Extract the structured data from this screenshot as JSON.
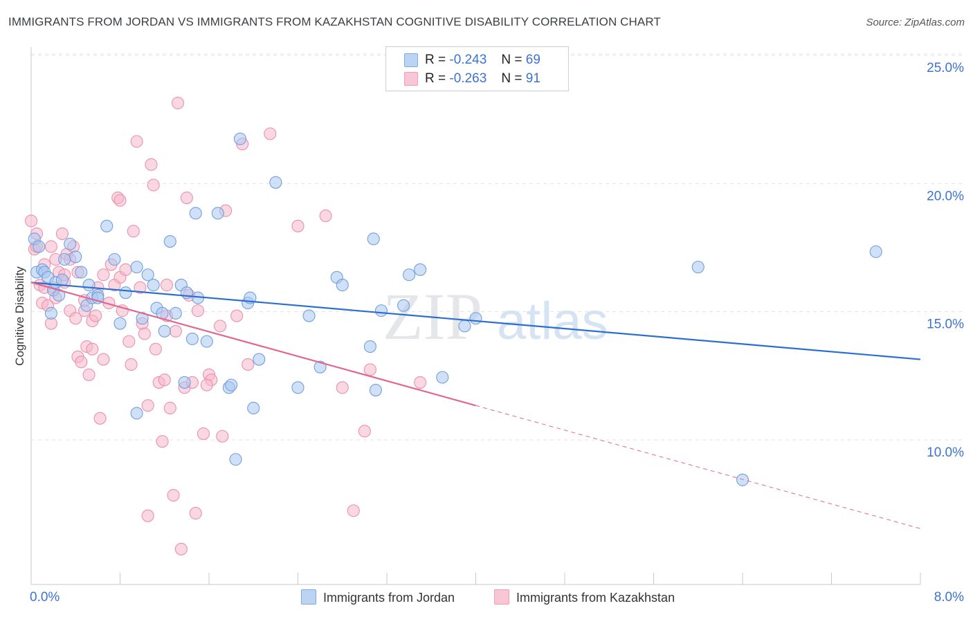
{
  "header": {
    "title": "IMMIGRANTS FROM JORDAN VS IMMIGRANTS FROM KAZAKHSTAN COGNITIVE DISABILITY CORRELATION CHART",
    "source": "Source: ZipAtlas.com"
  },
  "legend": {
    "row1": {
      "r_label": "R =",
      "r_value": "-0.243",
      "n_label": "N =",
      "n_value": "69"
    },
    "row2": {
      "r_label": "R =",
      "r_value": "-0.263",
      "n_label": "N =",
      "n_value": "91"
    }
  },
  "bottom_legend": {
    "series1": "Immigrants from Jordan",
    "series2": "Immigrants from Kazakhstan"
  },
  "colors": {
    "jordan_fill": "#a9c8f0",
    "jordan_stroke": "#6f9fe0",
    "jordan_line": "#2a6fd0",
    "kaz_fill": "#f6b8cb",
    "kaz_stroke": "#ec8fae",
    "kaz_line": "#e2678f",
    "axis_label": "#3a72d6"
  },
  "watermark": {
    "zip": "ZIP",
    "atlas": "atlas"
  },
  "chart_data": {
    "type": "scatter",
    "title": "IMMIGRANTS FROM JORDAN VS IMMIGRANTS FROM KAZAKHSTAN COGNITIVE DISABILITY CORRELATION CHART",
    "ylabel": "Cognitive Disability",
    "xlabel": "",
    "xlim": [
      0,
      8
    ],
    "ylim": [
      5,
      26
    ],
    "x_tick_labels": [
      "0.0%",
      "8.0%"
    ],
    "y_ticks": [
      10,
      15,
      20,
      25
    ],
    "y_tick_labels": [
      "10.0%",
      "15.0%",
      "20.0%",
      "25.0%"
    ],
    "grid": true,
    "legend_position": "top-center",
    "series": [
      {
        "name": "Immigrants from Jordan",
        "R": -0.243,
        "N": 69,
        "trend": {
          "x": [
            0,
            8
          ],
          "y": [
            16.6,
            13.6
          ],
          "dashed_from": null
        },
        "points": [
          [
            0.03,
            18.3
          ],
          [
            0.05,
            17.0
          ],
          [
            0.07,
            18.0
          ],
          [
            0.1,
            17.1
          ],
          [
            0.12,
            17.0
          ],
          [
            0.15,
            16.8
          ],
          [
            0.18,
            15.4
          ],
          [
            0.2,
            16.3
          ],
          [
            0.22,
            16.6
          ],
          [
            0.25,
            16.1
          ],
          [
            0.28,
            16.7
          ],
          [
            0.3,
            17.5
          ],
          [
            0.35,
            18.1
          ],
          [
            0.4,
            17.6
          ],
          [
            0.45,
            17.0
          ],
          [
            0.5,
            15.7
          ],
          [
            0.52,
            16.5
          ],
          [
            0.55,
            16.0
          ],
          [
            0.6,
            16.1
          ],
          [
            0.68,
            18.8
          ],
          [
            0.75,
            17.5
          ],
          [
            0.8,
            15.0
          ],
          [
            0.85,
            16.2
          ],
          [
            0.95,
            17.2
          ],
          [
            1.0,
            15.2
          ],
          [
            1.05,
            16.9
          ],
          [
            1.1,
            16.5
          ],
          [
            1.13,
            15.6
          ],
          [
            1.18,
            15.4
          ],
          [
            1.2,
            14.7
          ],
          [
            1.25,
            18.2
          ],
          [
            1.3,
            15.4
          ],
          [
            1.35,
            16.5
          ],
          [
            1.38,
            12.7
          ],
          [
            1.4,
            16.2
          ],
          [
            1.45,
            14.4
          ],
          [
            1.48,
            19.3
          ],
          [
            1.5,
            16.0
          ],
          [
            1.58,
            14.3
          ],
          [
            1.68,
            19.3
          ],
          [
            1.78,
            12.5
          ],
          [
            1.8,
            12.6
          ],
          [
            1.84,
            9.7
          ],
          [
            1.88,
            22.2
          ],
          [
            1.95,
            15.8
          ],
          [
            1.97,
            16.0
          ],
          [
            2.0,
            11.7
          ],
          [
            2.05,
            13.6
          ],
          [
            2.2,
            20.5
          ],
          [
            2.4,
            12.5
          ],
          [
            2.5,
            15.3
          ],
          [
            2.6,
            13.3
          ],
          [
            2.75,
            16.8
          ],
          [
            2.8,
            16.5
          ],
          [
            3.05,
            14.1
          ],
          [
            3.08,
            18.3
          ],
          [
            3.1,
            12.4
          ],
          [
            3.15,
            15.5
          ],
          [
            3.35,
            15.7
          ],
          [
            3.4,
            16.9
          ],
          [
            3.5,
            17.1
          ],
          [
            3.7,
            12.9
          ],
          [
            3.9,
            14.9
          ],
          [
            4.0,
            15.2
          ],
          [
            6.0,
            17.2
          ],
          [
            6.4,
            8.9
          ],
          [
            7.6,
            17.8
          ],
          [
            0.95,
            11.5
          ],
          [
            0.6,
            16.0
          ]
        ]
      },
      {
        "name": "Immigrants from Kazakhstan",
        "R": -0.263,
        "N": 91,
        "trend": {
          "x": [
            0,
            8
          ],
          "y": [
            16.6,
            7.0
          ],
          "dashed_from": 4.0
        },
        "points": [
          [
            0.0,
            19.0
          ],
          [
            0.03,
            17.9
          ],
          [
            0.05,
            18.5
          ],
          [
            0.08,
            16.5
          ],
          [
            0.1,
            15.8
          ],
          [
            0.12,
            16.4
          ],
          [
            0.15,
            15.7
          ],
          [
            0.18,
            15.0
          ],
          [
            0.2,
            16.4
          ],
          [
            0.22,
            16.0
          ],
          [
            0.25,
            17.0
          ],
          [
            0.28,
            18.5
          ],
          [
            0.3,
            16.6
          ],
          [
            0.32,
            17.7
          ],
          [
            0.35,
            15.5
          ],
          [
            0.38,
            18.0
          ],
          [
            0.4,
            15.2
          ],
          [
            0.42,
            13.7
          ],
          [
            0.45,
            13.5
          ],
          [
            0.48,
            15.5
          ],
          [
            0.5,
            14.1
          ],
          [
            0.52,
            13.0
          ],
          [
            0.55,
            15.1
          ],
          [
            0.58,
            15.3
          ],
          [
            0.6,
            16.4
          ],
          [
            0.62,
            11.3
          ],
          [
            0.65,
            16.9
          ],
          [
            0.7,
            15.8
          ],
          [
            0.72,
            17.3
          ],
          [
            0.75,
            16.5
          ],
          [
            0.78,
            19.9
          ],
          [
            0.8,
            16.8
          ],
          [
            0.82,
            15.5
          ],
          [
            0.85,
            17.1
          ],
          [
            0.88,
            14.3
          ],
          [
            0.9,
            13.4
          ],
          [
            0.92,
            18.6
          ],
          [
            0.95,
            22.1
          ],
          [
            0.98,
            16.4
          ],
          [
            1.0,
            15.0
          ],
          [
            1.02,
            14.6
          ],
          [
            1.05,
            11.8
          ],
          [
            1.08,
            21.2
          ],
          [
            1.1,
            20.4
          ],
          [
            1.12,
            14.0
          ],
          [
            1.15,
            12.7
          ],
          [
            1.18,
            10.4
          ],
          [
            1.2,
            12.8
          ],
          [
            1.22,
            16.5
          ],
          [
            1.25,
            11.7
          ],
          [
            1.28,
            8.3
          ],
          [
            1.3,
            14.7
          ],
          [
            1.32,
            23.6
          ],
          [
            1.35,
            6.2
          ],
          [
            1.38,
            12.5
          ],
          [
            1.4,
            19.9
          ],
          [
            1.42,
            16.1
          ],
          [
            1.45,
            12.7
          ],
          [
            1.48,
            7.6
          ],
          [
            1.5,
            15.5
          ],
          [
            1.55,
            10.7
          ],
          [
            1.6,
            13.0
          ],
          [
            1.62,
            12.8
          ],
          [
            1.7,
            14.9
          ],
          [
            1.72,
            10.6
          ],
          [
            1.75,
            19.4
          ],
          [
            1.85,
            15.3
          ],
          [
            1.9,
            22.0
          ],
          [
            1.95,
            13.4
          ],
          [
            2.15,
            22.4
          ],
          [
            2.4,
            18.8
          ],
          [
            2.65,
            19.2
          ],
          [
            2.8,
            12.5
          ],
          [
            2.9,
            7.7
          ],
          [
            3.0,
            10.8
          ],
          [
            3.05,
            13.2
          ],
          [
            3.5,
            12.7
          ],
          [
            0.18,
            18.0
          ],
          [
            0.55,
            14.0
          ],
          [
            1.05,
            7.5
          ],
          [
            0.35,
            17.5
          ],
          [
            0.22,
            17.5
          ],
          [
            0.42,
            17.0
          ],
          [
            0.3,
            16.9
          ],
          [
            0.12,
            17.3
          ],
          [
            0.48,
            15.9
          ],
          [
            0.65,
            13.6
          ],
          [
            1.22,
            15.3
          ],
          [
            0.8,
            19.8
          ],
          [
            1.58,
            12.6
          ],
          [
            0.05,
            18.0
          ]
        ]
      }
    ]
  }
}
